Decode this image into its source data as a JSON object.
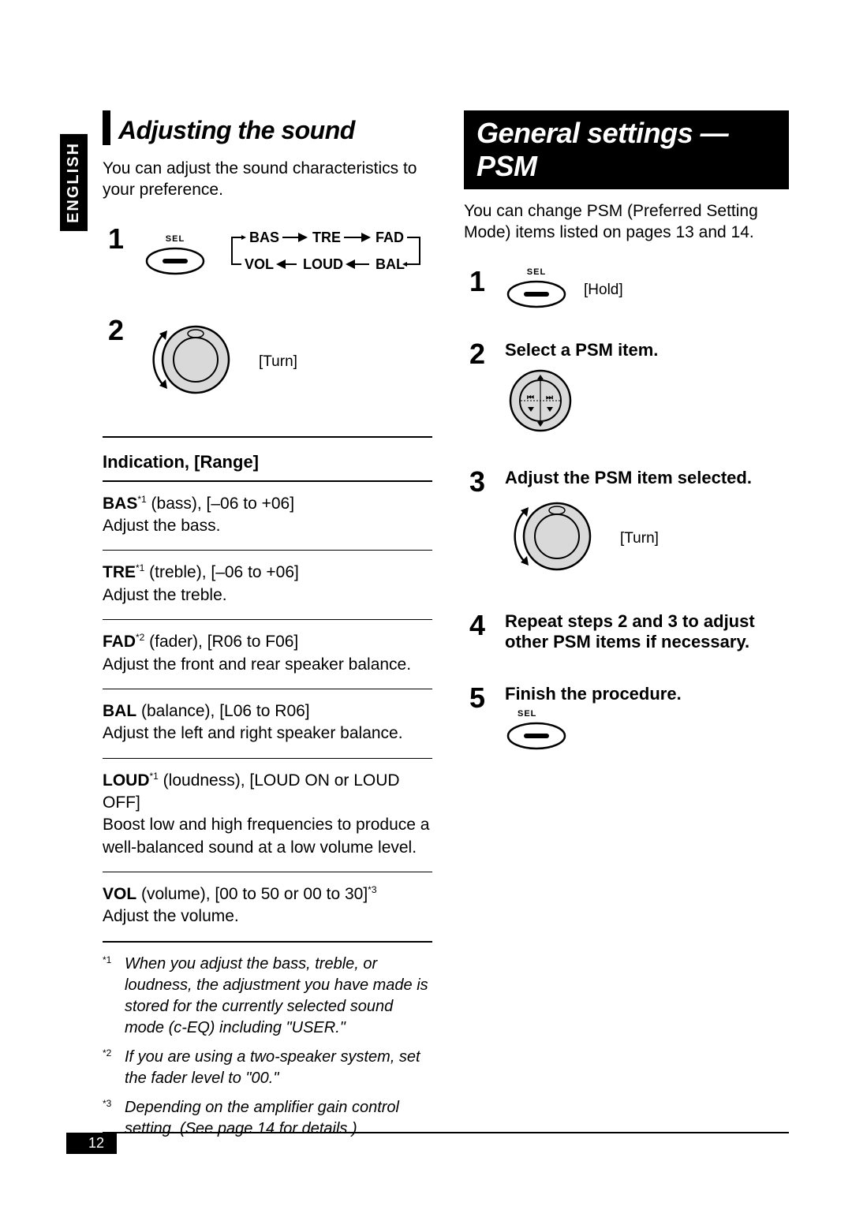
{
  "language_tab": "ENGLISH",
  "page_number": "12",
  "left": {
    "heading": "Adjusting the sound",
    "intro": "You can adjust the sound characteristics to your preference.",
    "step1": {
      "sel_label": "SEL",
      "seq_items": [
        "BAS",
        "TRE",
        "FAD",
        "VOL",
        "LOUD",
        "BAL"
      ]
    },
    "step2": {
      "turn_label": "[Turn]"
    },
    "indication_head": "Indication, [Range]",
    "entries": [
      {
        "name": "BAS",
        "sup": "*1",
        "desc": " (bass), [–06 to +06]",
        "body": "Adjust the bass."
      },
      {
        "name": "TRE",
        "sup": "*1",
        "desc": " (treble), [–06 to +06]",
        "body": "Adjust the treble."
      },
      {
        "name": "FAD",
        "sup": "*2",
        "desc": " (fader), [R06 to F06]",
        "body": "Adjust the front and rear speaker balance."
      },
      {
        "name": "BAL",
        "sup": "",
        "desc": " (balance), [L06 to R06]",
        "body": "Adjust the left and right speaker balance."
      },
      {
        "name": "LOUD",
        "sup": "*1",
        "desc": " (loudness), [LOUD ON or LOUD OFF]",
        "body": "Boost low and high frequencies to produce a well-balanced sound at a low volume level."
      },
      {
        "name": "VOL",
        "sup": "",
        "desc": " (volume), [00 to 50 or 00 to 30]*3",
        "body": "Adjust the volume."
      }
    ],
    "footnotes": [
      {
        "mark": "*1",
        "text": "When you adjust the bass, treble, or loudness, the adjustment you have made is stored for the currently selected sound mode (c-EQ) including \"USER.\""
      },
      {
        "mark": "*2",
        "text": "If you are using a two-speaker system, set the fader level to \"00.\""
      },
      {
        "mark": "*3",
        "text": "Depending on the amplifier gain control setting. (See page 14 for details.)"
      }
    ]
  },
  "right": {
    "banner": "General settings — PSM",
    "intro": "You can change PSM (Preferred Setting Mode) items listed on pages 13 and 14.",
    "step1": {
      "sel_label": "SEL",
      "hold": "[Hold]"
    },
    "step2_title": "Select a PSM item.",
    "step3_title": "Adjust the PSM item selected.",
    "step3_turn": "[Turn]",
    "step4_text_a": "Repeat steps ",
    "step4_b1": "2",
    "step4_text_b": " and ",
    "step4_b2": "3",
    "step4_text_c": " to adjust other PSM items if necessary.",
    "step5_title": "Finish the procedure.",
    "step5_sel": "SEL"
  },
  "colors": {
    "ink": "#000000",
    "paper": "#ffffff",
    "button_fill": "#d9d9d9"
  },
  "svg": {
    "sel_button": {
      "w": 76,
      "h": 38,
      "rx": 19,
      "fill": "#ffffff",
      "stroke": "#000",
      "sw": 2,
      "inner_rx": 4,
      "inner_w": 34,
      "inner_h": 6
    },
    "dial": {
      "outer_r": 42,
      "inner_r": 28,
      "fill": "#d9d9d9",
      "stroke": "#000",
      "sw": 2
    },
    "pad": {
      "r": 36,
      "fill": "#d9d9d9",
      "stroke": "#000",
      "sw": 2
    }
  }
}
